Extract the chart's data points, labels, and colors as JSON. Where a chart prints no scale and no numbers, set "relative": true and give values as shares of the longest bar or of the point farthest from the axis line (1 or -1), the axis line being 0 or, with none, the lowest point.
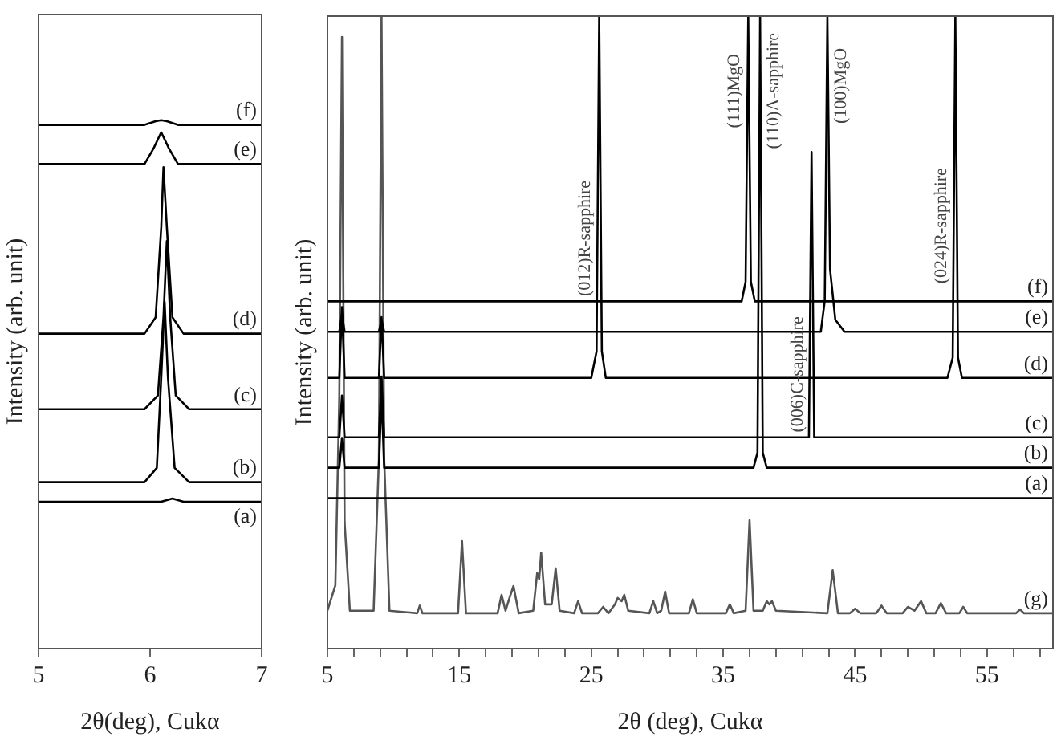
{
  "chart_data": [
    {
      "type": "line",
      "xlabel": "2θ(deg), Cukα",
      "ylabel": "Intensity (arb. unit)",
      "relative": true,
      "marker": "none",
      "tick_labels": "x",
      "xlim": [
        5,
        7
      ],
      "xticks": [
        5,
        6,
        7
      ],
      "series": [
        {
          "name": "(f)",
          "color": "#000000",
          "x": [
            5,
            5.95,
            6.05,
            6.1,
            6.15,
            6.25,
            7
          ],
          "values": [
            0.991,
            0.991,
            0.998,
            1,
            0.998,
            0.991,
            0.991
          ]
        },
        {
          "name": "(e)",
          "color": "#000000",
          "x": [
            5,
            5.95,
            6.03,
            6.1,
            6.17,
            6.25,
            7
          ],
          "values": [
            0.917,
            0.917,
            0.946,
            0.977,
            0.946,
            0.917,
            0.917
          ]
        },
        {
          "name": "(d)",
          "color": "#000000",
          "x": [
            5,
            5.95,
            6.05,
            6.1,
            6.12,
            6.15,
            6.2,
            6.3,
            7
          ],
          "values": [
            0.596,
            0.596,
            0.627,
            0.798,
            0.911,
            0.798,
            0.627,
            0.596,
            0.596
          ]
        },
        {
          "name": "(c)",
          "color": "#000000",
          "x": [
            5,
            5.95,
            6.07,
            6.12,
            6.15,
            6.18,
            6.23,
            6.35,
            7
          ],
          "values": [
            0.453,
            0.453,
            0.479,
            0.627,
            0.771,
            0.627,
            0.479,
            0.453,
            0.453
          ]
        },
        {
          "name": "(b)",
          "color": "#000000",
          "x": [
            5,
            5.95,
            6.06,
            6.1,
            6.13,
            6.16,
            6.22,
            6.35,
            7
          ],
          "values": [
            0.315,
            0.315,
            0.342,
            0.513,
            0.656,
            0.513,
            0.342,
            0.315,
            0.315
          ]
        },
        {
          "name": "(a)",
          "color": "#000000",
          "x": [
            5,
            6.1,
            6.2,
            6.3,
            7
          ],
          "values": [
            0.278,
            0.278,
            0.284,
            0.278,
            0.278
          ]
        }
      ]
    },
    {
      "type": "line",
      "xlabel": "2θ (deg), Cukα",
      "ylabel": "Intensity (arb. unit)",
      "relative": true,
      "marker": "none",
      "tick_labels": "x",
      "xlim": [
        5,
        60
      ],
      "xticks": [
        5,
        {
          "value": 7,
          "label": null
        },
        {
          "value": 9,
          "label": null
        },
        {
          "value": 11,
          "label": null
        },
        {
          "value": 13,
          "label": null
        },
        15,
        {
          "value": 17,
          "label": null
        },
        {
          "value": 19,
          "label": null
        },
        {
          "value": 21,
          "label": null
        },
        {
          "value": 23,
          "label": null
        },
        25,
        {
          "value": 27,
          "label": null
        },
        {
          "value": 29,
          "label": null
        },
        {
          "value": 31,
          "label": null
        },
        {
          "value": 33,
          "label": null
        },
        35,
        {
          "value": 37,
          "label": null
        },
        {
          "value": 39,
          "label": null
        },
        {
          "value": 41,
          "label": null
        },
        {
          "value": 43,
          "label": null
        },
        45,
        {
          "value": 47,
          "label": null
        },
        {
          "value": 49,
          "label": null
        },
        {
          "value": 51,
          "label": null
        },
        {
          "value": 53,
          "label": null
        },
        55,
        {
          "value": 57,
          "label": null
        },
        {
          "value": 59,
          "label": null
        }
      ],
      "annotations": [
        {
          "text": "(012)R-sapphire",
          "x": 25.6,
          "y": 0.557
        },
        {
          "text": "(111)MgO",
          "x": 36.9,
          "y": 0.823
        },
        {
          "text": "(110)A-sapphire",
          "x": 37.8,
          "y": 0.79
        },
        {
          "text": "(100)MgO",
          "x": 42.9,
          "y": 0.83
        },
        {
          "text": "(006)C-sapphire",
          "x": 41.7,
          "y": 0.342
        },
        {
          "text": "(024)R-sapphire",
          "x": 52.6,
          "y": 0.577
        }
      ],
      "series": [
        {
          "name": "(f)",
          "color": "#000000",
          "x": [
            5,
            36.4,
            36.7,
            36.9,
            37.1,
            37.4,
            60
          ],
          "values": [
            0.549,
            0.549,
            0.58,
            1,
            0.58,
            0.549,
            0.549
          ]
        },
        {
          "name": "(e)",
          "color": "#000000",
          "x": [
            5,
            5.9,
            6.1,
            6.3,
            8.9,
            9.1,
            9.3,
            42.4,
            42.7,
            42.9,
            43.1,
            43.5,
            44.2,
            60
          ],
          "values": [
            0.501,
            0.501,
            0.53,
            0.501,
            0.501,
            0.52,
            0.501,
            0.501,
            0.55,
            1,
            0.6,
            0.52,
            0.501,
            0.501
          ]
        },
        {
          "name": "(d)",
          "color": "#000000",
          "x": [
            5,
            5.9,
            6.1,
            6.3,
            8.9,
            9.1,
            9.3,
            25.0,
            25.4,
            25.6,
            25.8,
            26.1,
            52.0,
            52.4,
            52.6,
            52.8,
            53.1,
            60
          ],
          "values": [
            0.428,
            0.428,
            0.54,
            0.428,
            0.428,
            0.524,
            0.428,
            0.428,
            0.47,
            1,
            0.47,
            0.428,
            0.428,
            0.46,
            1,
            0.46,
            0.428,
            0.428
          ]
        },
        {
          "name": "(c)",
          "color": "#000000",
          "x": [
            5,
            5.9,
            6.1,
            6.3,
            8.9,
            9.1,
            9.3,
            41.5,
            41.7,
            41.9,
            60
          ],
          "values": [
            0.334,
            0.334,
            0.4,
            0.334,
            0.334,
            0.43,
            0.334,
            0.334,
            0.785,
            0.334,
            0.334
          ]
        },
        {
          "name": "(b)",
          "color": "#000000",
          "x": [
            5,
            5.9,
            6.1,
            6.3,
            8.9,
            9.1,
            9.3,
            37.3,
            37.6,
            37.8,
            38.0,
            38.3,
            60
          ],
          "values": [
            0.286,
            0.286,
            0.333,
            0.286,
            0.286,
            0.405,
            0.286,
            0.286,
            0.31,
            1,
            0.31,
            0.286,
            0.286
          ]
        },
        {
          "name": "(a)",
          "color": "#000000",
          "x": [
            5,
            60
          ],
          "values": [
            0.238,
            0.238
          ]
        },
        {
          "name": "(g)",
          "color": "#555555",
          "x": [
            5,
            5.6,
            5.9,
            6.1,
            6.3,
            6.7,
            8.5,
            8.9,
            9.1,
            9.3,
            9.7,
            11.8,
            12,
            12.2,
            14.9,
            15.2,
            15.5,
            17.9,
            18.2,
            18.5,
            18.8,
            19.1,
            19.5,
            20.6,
            20.9,
            21.05,
            21.2,
            21.5,
            22,
            22.3,
            22.6,
            23.7,
            24,
            24.3,
            25.5,
            25.9,
            26.3,
            26.8,
            27,
            27.3,
            27.5,
            27.8,
            29.4,
            29.7,
            30,
            30.3,
            30.6,
            30.9,
            32.4,
            32.7,
            33,
            35.2,
            35.5,
            35.8,
            36.7,
            37,
            37.3,
            38,
            38.3,
            38.5,
            38.7,
            39,
            42.9,
            43.3,
            43.7,
            44.6,
            45,
            45.4,
            46.6,
            47,
            47.4,
            48.6,
            49,
            49.5,
            50,
            50.4,
            51.1,
            51.5,
            51.9,
            52.9,
            53.2,
            53.5,
            57.2,
            57.5,
            57.8,
            60
          ],
          "values": [
            0.06,
            0.1,
            0.4,
            0.967,
            0.2,
            0.06,
            0.06,
            0.3,
            1,
            0.3,
            0.06,
            0.056,
            0.068,
            0.056,
            0.056,
            0.17,
            0.056,
            0.056,
            0.085,
            0.06,
            0.08,
            0.099,
            0.056,
            0.06,
            0.12,
            0.11,
            0.152,
            0.07,
            0.07,
            0.127,
            0.06,
            0.056,
            0.075,
            0.056,
            0.056,
            0.066,
            0.056,
            0.07,
            0.08,
            0.075,
            0.085,
            0.06,
            0.056,
            0.075,
            0.056,
            0.06,
            0.09,
            0.056,
            0.056,
            0.078,
            0.056,
            0.056,
            0.07,
            0.056,
            0.06,
            0.203,
            0.06,
            0.06,
            0.075,
            0.07,
            0.075,
            0.06,
            0.056,
            0.124,
            0.056,
            0.056,
            0.063,
            0.056,
            0.056,
            0.068,
            0.056,
            0.056,
            0.066,
            0.06,
            0.075,
            0.056,
            0.056,
            0.072,
            0.056,
            0.056,
            0.066,
            0.056,
            0.056,
            0.062,
            0.056,
            0.056
          ]
        }
      ]
    }
  ]
}
